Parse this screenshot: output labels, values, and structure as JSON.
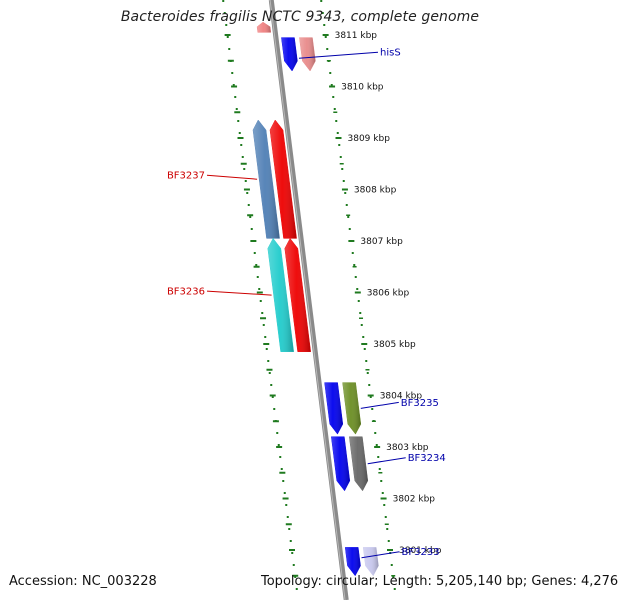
{
  "title": "Bacteroides fragilis NCTC 9343, complete genome",
  "footer": {
    "accession_label": "Accession:",
    "accession": "NC_003228",
    "topology_label": "Topology:",
    "topology": "circular",
    "length_label": "Length:",
    "length": "5,205,140 bp",
    "genes_label": "Genes:",
    "genes": "4,276"
  },
  "colors": {
    "backbone": "#8a8a8a",
    "tick": "#1f7a1f",
    "forward_label": "#0000aa",
    "reverse_label": "#cc0000"
  },
  "scale": {
    "unit": "kbp",
    "ticks": [
      {
        "kbp": 3811,
        "label": "3811 kbp"
      },
      {
        "kbp": 3810,
        "label": "3810 kbp"
      },
      {
        "kbp": 3809,
        "label": "3809 kbp"
      },
      {
        "kbp": 3808,
        "label": "3808 kbp"
      },
      {
        "kbp": 3807,
        "label": "3807 kbp"
      },
      {
        "kbp": 3806,
        "label": "3806 kbp"
      },
      {
        "kbp": 3805,
        "label": "3805 kbp"
      },
      {
        "kbp": 3804,
        "label": "3804 kbp"
      },
      {
        "kbp": 3803,
        "label": "3803 kbp"
      },
      {
        "kbp": 3802,
        "label": "3802 kbp"
      },
      {
        "kbp": 3801,
        "label": "3801 kbp"
      }
    ]
  },
  "features": [
    {
      "id": "f01",
      "strand": "-",
      "lane": "inner",
      "start": 3811.25,
      "end": 3811.05,
      "color": "#f08080"
    },
    {
      "id": "f02",
      "strand": "+",
      "lane": "inner",
      "start": 3810.95,
      "end": 3810.3,
      "color": "#0000ee",
      "label": "hisS"
    },
    {
      "id": "f03",
      "strand": "+",
      "lane": "outer",
      "start": 3810.95,
      "end": 3810.3,
      "color": "#e88a8a"
    },
    {
      "id": "f04",
      "strand": "-",
      "lane": "outer",
      "start": 3809.35,
      "end": 3807.05,
      "color": "#4f7fb5",
      "label": "BF3237"
    },
    {
      "id": "f05",
      "strand": "-",
      "lane": "inner",
      "start": 3809.35,
      "end": 3807.05,
      "color": "#ee0000"
    },
    {
      "id": "f06",
      "strand": "-",
      "lane": "outer",
      "start": 3807.05,
      "end": 3804.85,
      "color": "#20cccc",
      "label": "BF3236"
    },
    {
      "id": "f07",
      "strand": "-",
      "lane": "inner",
      "start": 3807.05,
      "end": 3804.85,
      "color": "#ee0000"
    },
    {
      "id": "f08",
      "strand": "+",
      "lane": "inner",
      "start": 3804.25,
      "end": 3803.25,
      "color": "#0000ee"
    },
    {
      "id": "f09",
      "strand": "+",
      "lane": "outer",
      "start": 3804.25,
      "end": 3803.25,
      "color": "#6b8e23",
      "label": "BF3235"
    },
    {
      "id": "f10",
      "strand": "+",
      "lane": "inner",
      "start": 3803.2,
      "end": 3802.15,
      "color": "#0000ee"
    },
    {
      "id": "f11",
      "strand": "+",
      "lane": "outer",
      "start": 3803.2,
      "end": 3802.15,
      "color": "#666666",
      "label": "BF3234"
    },
    {
      "id": "f12",
      "strand": "+",
      "lane": "inner",
      "start": 3801.05,
      "end": 3800.5,
      "color": "#0000ee",
      "label": "BF3233"
    },
    {
      "id": "f13",
      "strand": "+",
      "lane": "outer",
      "start": 3801.05,
      "end": 3800.5,
      "color": "#c8c8ee"
    }
  ]
}
